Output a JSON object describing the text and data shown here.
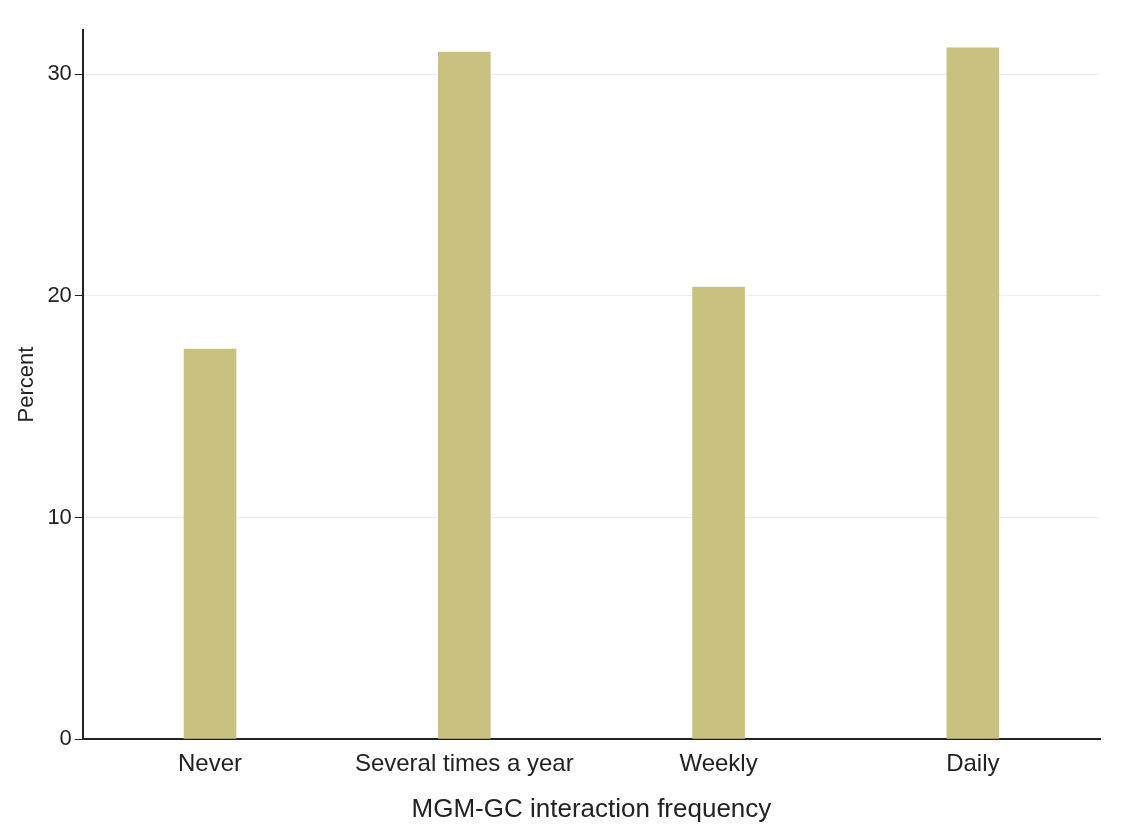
{
  "chart_data": {
    "type": "bar",
    "xlabel": "MGM-GC interaction frequency",
    "ylabel": "Percent",
    "categories": [
      "Never",
      "Several times a year",
      "Weekly",
      "Daily"
    ],
    "values": [
      17.6,
      31.0,
      20.4,
      31.2
    ],
    "color": "#c9c17f",
    "ylim": [
      0,
      32
    ],
    "yticks": [
      0,
      10,
      20,
      30
    ],
    "grid": "y",
    "legend": false
  }
}
